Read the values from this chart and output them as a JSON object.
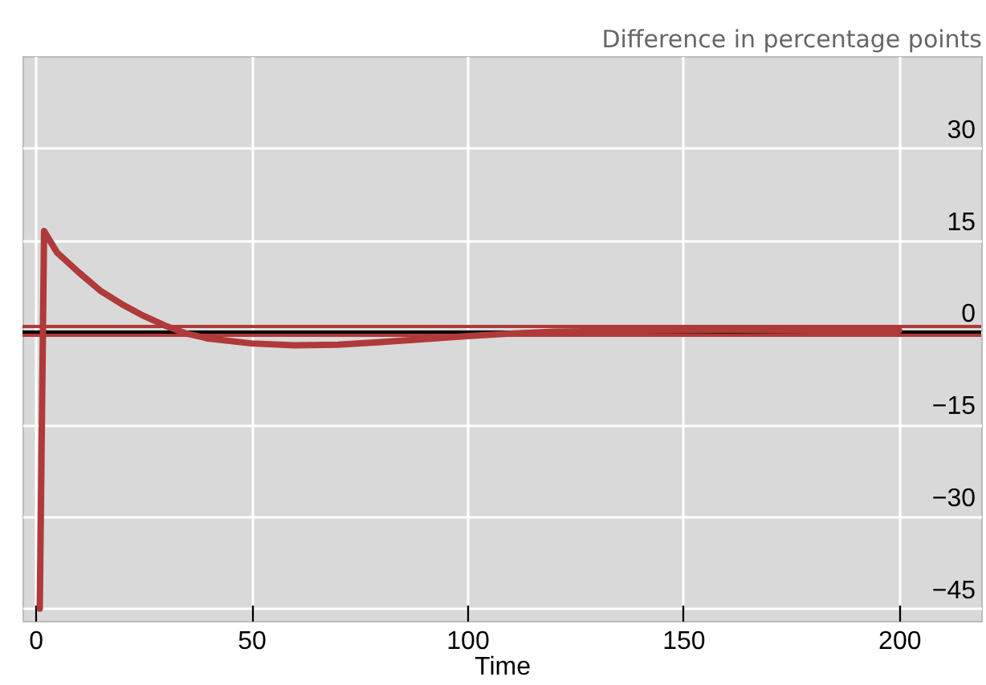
{
  "chart_data": {
    "type": "line",
    "xlabel": "Time",
    "ylabel": "Difference in percentage points",
    "x": [
      1,
      2,
      5,
      10,
      15,
      20,
      25,
      30,
      35,
      40,
      50,
      60,
      70,
      80,
      90,
      100,
      110,
      120,
      140,
      160,
      180,
      200
    ],
    "series": [
      {
        "color": "#b03a3a",
        "values": [
          -45,
          16.5,
          13,
          9.8,
          6.8,
          4.6,
          2.7,
          1.1,
          -0.2,
          -1,
          -1.8,
          -2.1,
          -2,
          -1.6,
          -1.1,
          -0.6,
          -0.2,
          0.1,
          0.3,
          0.4,
          0.3,
          0.3
        ]
      }
    ],
    "xlim": [
      -3,
      219
    ],
    "ylim": [
      -47,
      45
    ],
    "xticks": [
      0,
      50,
      100,
      150,
      200
    ],
    "yticks": [
      -45,
      -30,
      -15,
      0,
      15,
      30
    ],
    "ref_lines": [
      {
        "axis": "y",
        "value": 0,
        "color": "#000000"
      },
      {
        "axis": "y",
        "value": 1,
        "color": "#b03a3a"
      },
      {
        "axis": "y",
        "value": -0.5,
        "color": "#b03a3a"
      }
    ],
    "grid": true,
    "line_style": "solid",
    "marker": "none"
  }
}
